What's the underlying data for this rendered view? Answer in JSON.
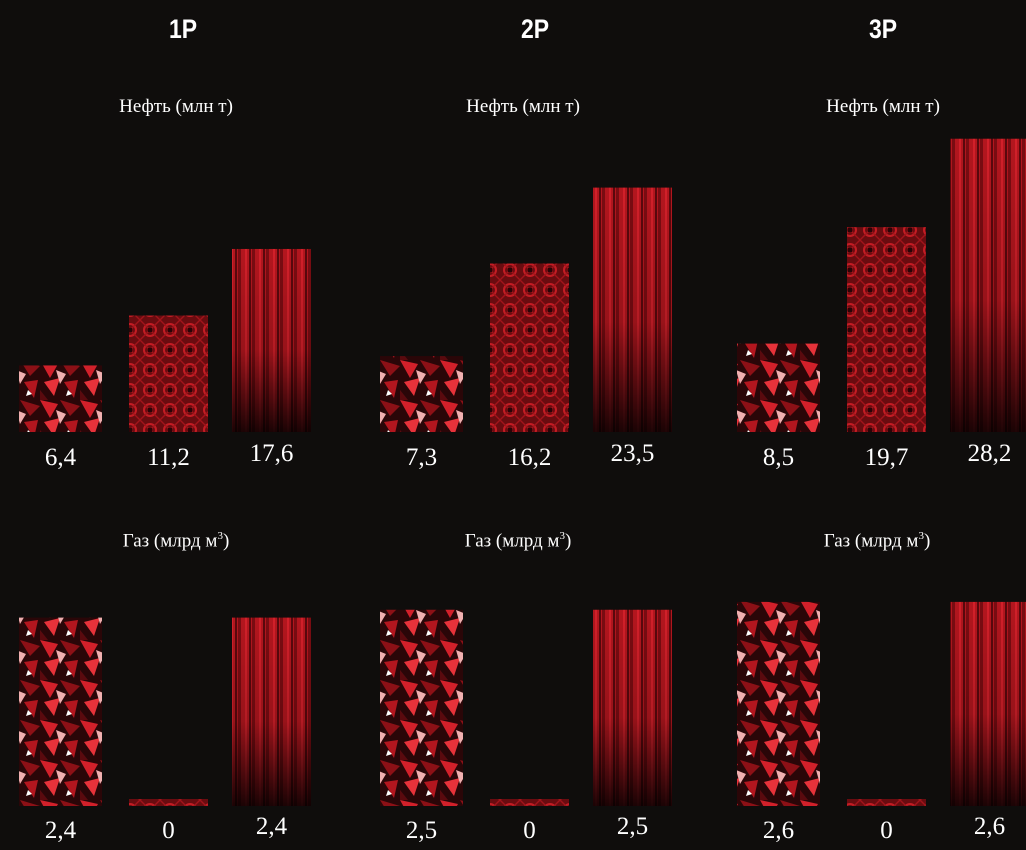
{
  "groups": [
    {
      "title": "1P"
    },
    {
      "title": "2P"
    },
    {
      "title": "3P"
    }
  ],
  "panels": {
    "oil": {
      "title": "Нефть (млн т)"
    },
    "gas": {
      "title_main": "Газ (млрд м",
      "title_sup": "3",
      "title_end": ")"
    }
  },
  "colors": {
    "background": "#0f0d0c",
    "red": "#d2202a",
    "dark_red": "#3a0508"
  },
  "chart_data": [
    {
      "type": "bar",
      "group": "1P",
      "metric": "oil",
      "title": "Нефть (млн т)",
      "values": [
        6.4,
        11.2,
        17.6
      ],
      "labels": [
        "6,4",
        "11,2",
        "17,6"
      ]
    },
    {
      "type": "bar",
      "group": "2P",
      "metric": "oil",
      "title": "Нефть (млн т)",
      "values": [
        7.3,
        16.2,
        23.5
      ],
      "labels": [
        "7,3",
        "16,2",
        "23,5"
      ]
    },
    {
      "type": "bar",
      "group": "3P",
      "metric": "oil",
      "title": "Нефть (млн т)",
      "values": [
        8.5,
        19.7,
        28.2
      ],
      "labels": [
        "8,5",
        "19,7",
        "28,2"
      ]
    },
    {
      "type": "bar",
      "group": "1P",
      "metric": "gas",
      "title": "Газ (млрд м3)",
      "values": [
        2.4,
        0,
        2.4
      ],
      "labels": [
        "2,4",
        "0",
        "2,4"
      ]
    },
    {
      "type": "bar",
      "group": "2P",
      "metric": "gas",
      "title": "Газ (млрд м3)",
      "values": [
        2.5,
        0,
        2.5
      ],
      "labels": [
        "2,5",
        "0",
        "2,5"
      ]
    },
    {
      "type": "bar",
      "group": "3P",
      "metric": "gas",
      "title": "Газ (млрд м3)",
      "values": [
        2.6,
        0,
        2.6
      ],
      "labels": [
        "2,6",
        "0",
        "2,6"
      ]
    }
  ]
}
